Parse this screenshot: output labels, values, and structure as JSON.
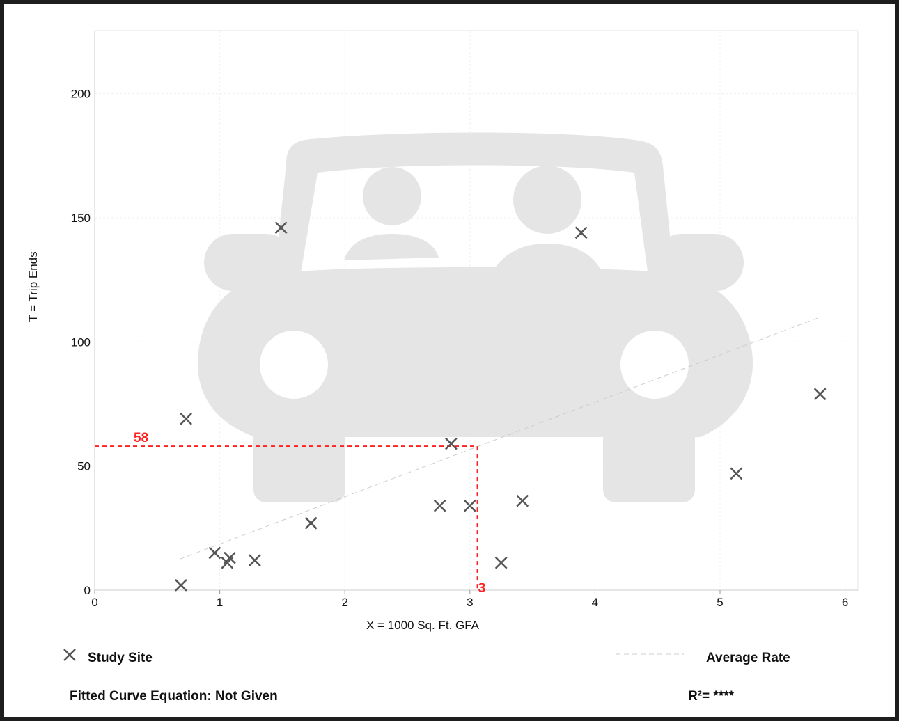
{
  "chart_data": {
    "type": "scatter",
    "xlabel": "X = 1000 Sq. Ft. GFA",
    "ylabel": "T = Trip Ends",
    "xlim": [
      0,
      6.1
    ],
    "ylim": [
      0,
      225
    ],
    "x_ticks": [
      0,
      1,
      2,
      3,
      4,
      5,
      6
    ],
    "y_ticks": [
      0,
      50,
      100,
      150,
      200
    ],
    "grid": true,
    "series": [
      {
        "name": "Study Site",
        "marker": "x",
        "color": "#555555",
        "points": [
          {
            "x": 0.69,
            "y": 2
          },
          {
            "x": 0.73,
            "y": 69
          },
          {
            "x": 0.96,
            "y": 15
          },
          {
            "x": 1.06,
            "y": 11
          },
          {
            "x": 1.08,
            "y": 13
          },
          {
            "x": 1.28,
            "y": 12
          },
          {
            "x": 1.49,
            "y": 146
          },
          {
            "x": 1.73,
            "y": 27
          },
          {
            "x": 2.76,
            "y": 34
          },
          {
            "x": 2.85,
            "y": 59
          },
          {
            "x": 3.0,
            "y": 34
          },
          {
            "x": 3.25,
            "y": 11
          },
          {
            "x": 3.42,
            "y": 36
          },
          {
            "x": 3.89,
            "y": 144
          },
          {
            "x": 5.13,
            "y": 47
          },
          {
            "x": 5.8,
            "y": 79
          }
        ]
      },
      {
        "name": "Average Rate",
        "type": "line",
        "dashed": true,
        "color": "#cccccc",
        "points": [
          {
            "x": 0.68,
            "y": 12.5
          },
          {
            "x": 5.8,
            "y": 110
          }
        ]
      }
    ],
    "annotation": {
      "x_value": 3.06,
      "y_value": 58,
      "x_label": "3",
      "y_label": "58",
      "color": "#ff2020"
    }
  },
  "legend": {
    "study_site_label": "Study Site",
    "average_rate_label": "Average Rate"
  },
  "footer": {
    "equation_label": "Fitted Curve Equation: Not Given",
    "r2_label": "R²= ****"
  },
  "background_icon": "car-with-passengers-icon"
}
